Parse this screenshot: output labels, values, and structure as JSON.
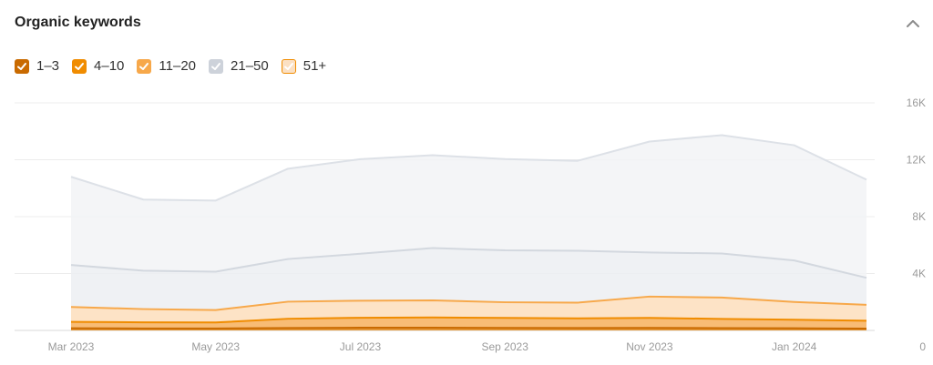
{
  "header": {
    "title": "Organic keywords"
  },
  "legend": [
    {
      "label": "1–3",
      "color": "#c96a00",
      "checked": true
    },
    {
      "label": "4–10",
      "color": "#f08c00",
      "checked": true
    },
    {
      "label": "11–20",
      "color": "#f7a84a",
      "checked": true
    },
    {
      "label": "21–50",
      "color": "#cdd2da",
      "checked": true
    },
    {
      "label": "51+",
      "color": "#fbe0c3",
      "border": "#f08c00",
      "checked": true
    }
  ],
  "chart_data": {
    "type": "area",
    "stacked": true,
    "x": [
      "2023-03",
      "2023-04",
      "2023-05",
      "2023-06",
      "2023-07",
      "2023-08",
      "2023-09",
      "2023-10",
      "2023-11",
      "2023-12",
      "2024-01",
      "2024-02"
    ],
    "x_tick_labels": [
      "Mar 2023",
      "May 2023",
      "Jul 2023",
      "Sep 2023",
      "Nov 2023",
      "Jan 2024"
    ],
    "y_tick_labels": [
      "0",
      "4K",
      "8K",
      "12K",
      "16K"
    ],
    "ylim": [
      0,
      16000
    ],
    "y_axis_position": "right",
    "grid": true,
    "series": [
      {
        "name": "1–3",
        "color": "#c96a00",
        "values": [
          150,
          140,
          140,
          170,
          190,
          190,
          180,
          170,
          180,
          160,
          150,
          130
        ]
      },
      {
        "name": "4–10",
        "color": "#f08c00",
        "values": [
          450,
          430,
          420,
          650,
          700,
          720,
          700,
          680,
          700,
          650,
          600,
          550
        ]
      },
      {
        "name": "11–20",
        "color": "#f7a84a",
        "values": [
          1050,
          930,
          870,
          1200,
          1200,
          1200,
          1100,
          1100,
          1500,
          1500,
          1250,
          1120
        ]
      },
      {
        "name": "21–50",
        "color": "#d3d8df",
        "values": [
          2950,
          2700,
          2700,
          3000,
          3300,
          3680,
          3650,
          3650,
          3100,
          3100,
          2920,
          1900
        ]
      },
      {
        "name": "51+",
        "color": "#dde1e7",
        "values": [
          6200,
          5000,
          5000,
          6350,
          6650,
          6530,
          6420,
          6320,
          7800,
          8320,
          8100,
          6900
        ]
      }
    ],
    "title": "",
    "xlabel": "",
    "ylabel": ""
  }
}
